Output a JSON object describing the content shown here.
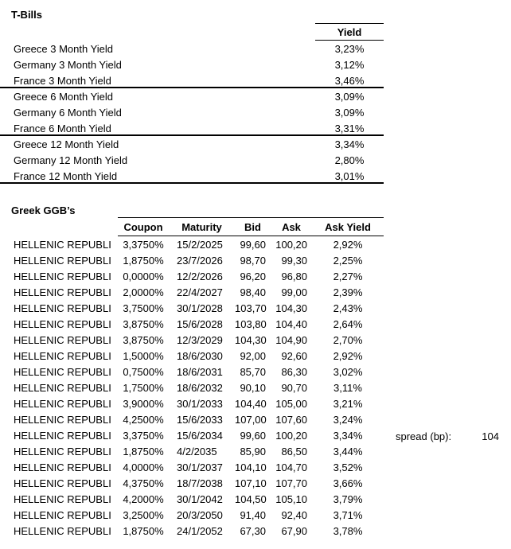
{
  "tbills": {
    "title": "T-Bills",
    "yield_header": "Yield",
    "groups": [
      [
        {
          "label": "Greece 3 Month Yield",
          "value": "3,23%"
        },
        {
          "label": "Germany 3 Month Yield",
          "value": "3,12%"
        },
        {
          "label": "France 3 Month Yield",
          "value": "3,46%"
        }
      ],
      [
        {
          "label": "Greece 6 Month Yield",
          "value": "3,09%"
        },
        {
          "label": "Germany 6 Month Yield",
          "value": "3,09%"
        },
        {
          "label": "France 6 Month Yield",
          "value": "3,31%"
        }
      ],
      [
        {
          "label": "Greece 12 Month Yield",
          "value": "3,34%"
        },
        {
          "label": "Germany 12 Month Yield",
          "value": "2,80%"
        },
        {
          "label": "France 12 Month Yield",
          "value": "3,01%"
        }
      ]
    ]
  },
  "ggb": {
    "title": "Greek GGB’s",
    "headers": [
      "Coupon",
      "Maturity",
      "Bid",
      "Ask",
      "Ask Yield"
    ],
    "rows": [
      {
        "name": "HELLENIC REPUBLI",
        "coupon": "3,3750%",
        "maturity": "15/2/2025",
        "bid": "99,60",
        "ask": "100,20",
        "ask_yield": "2,92%"
      },
      {
        "name": "HELLENIC REPUBLI",
        "coupon": "1,8750%",
        "maturity": "23/7/2026",
        "bid": "98,70",
        "ask": "99,30",
        "ask_yield": "2,25%"
      },
      {
        "name": "HELLENIC REPUBLI",
        "coupon": "0,0000%",
        "maturity": "12/2/2026",
        "bid": "96,20",
        "ask": "96,80",
        "ask_yield": "2,27%"
      },
      {
        "name": "HELLENIC REPUBLI",
        "coupon": "2,0000%",
        "maturity": "22/4/2027",
        "bid": "98,40",
        "ask": "99,00",
        "ask_yield": "2,39%"
      },
      {
        "name": "HELLENIC REPUBLI",
        "coupon": "3,7500%",
        "maturity": "30/1/2028",
        "bid": "103,70",
        "ask": "104,30",
        "ask_yield": "2,43%"
      },
      {
        "name": "HELLENIC REPUBLI",
        "coupon": "3,8750%",
        "maturity": "15/6/2028",
        "bid": "103,80",
        "ask": "104,40",
        "ask_yield": "2,64%"
      },
      {
        "name": "HELLENIC REPUBLI",
        "coupon": "3,8750%",
        "maturity": "12/3/2029",
        "bid": "104,30",
        "ask": "104,90",
        "ask_yield": "2,70%"
      },
      {
        "name": "HELLENIC REPUBLI",
        "coupon": "1,5000%",
        "maturity": "18/6/2030",
        "bid": "92,00",
        "ask": "92,60",
        "ask_yield": "2,92%"
      },
      {
        "name": "HELLENIC REPUBLI",
        "coupon": "0,7500%",
        "maturity": "18/6/2031",
        "bid": "85,70",
        "ask": "86,30",
        "ask_yield": "3,02%"
      },
      {
        "name": "HELLENIC REPUBLI",
        "coupon": "1,7500%",
        "maturity": "18/6/2032",
        "bid": "90,10",
        "ask": "90,70",
        "ask_yield": "3,11%"
      },
      {
        "name": "HELLENIC REPUBLI",
        "coupon": "3,9000%",
        "maturity": "30/1/2033",
        "bid": "104,40",
        "ask": "105,00",
        "ask_yield": "3,21%"
      },
      {
        "name": "HELLENIC REPUBLI",
        "coupon": "4,2500%",
        "maturity": "15/6/2033",
        "bid": "107,00",
        "ask": "107,60",
        "ask_yield": "3,24%"
      },
      {
        "name": "HELLENIC REPUBLI",
        "coupon": "3,3750%",
        "maturity": "15/6/2034",
        "bid": "99,60",
        "ask": "100,20",
        "ask_yield": "3,34%"
      },
      {
        "name": "HELLENIC REPUBLI",
        "coupon": "1,8750%",
        "maturity": "4/2/2035",
        "bid": "85,90",
        "ask": "86,50",
        "ask_yield": "3,44%"
      },
      {
        "name": "HELLENIC REPUBLI",
        "coupon": "4,0000%",
        "maturity": "30/1/2037",
        "bid": "104,10",
        "ask": "104,70",
        "ask_yield": "3,52%"
      },
      {
        "name": "HELLENIC REPUBLI",
        "coupon": "4,3750%",
        "maturity": "18/7/2038",
        "bid": "107,10",
        "ask": "107,70",
        "ask_yield": "3,66%"
      },
      {
        "name": "HELLENIC REPUBLI",
        "coupon": "4,2000%",
        "maturity": "30/1/2042",
        "bid": "104,50",
        "ask": "105,10",
        "ask_yield": "3,79%"
      },
      {
        "name": "HELLENIC REPUBLI",
        "coupon": "3,2500%",
        "maturity": "20/3/2050",
        "bid": "91,40",
        "ask": "92,40",
        "ask_yield": "3,71%"
      },
      {
        "name": "HELLENIC REPUBLI",
        "coupon": "1,8750%",
        "maturity": "24/1/2052",
        "bid": "67,30",
        "ask": "67,90",
        "ask_yield": "3,78%"
      }
    ]
  },
  "spread": {
    "label": "spread (bp):",
    "value": "104"
  }
}
